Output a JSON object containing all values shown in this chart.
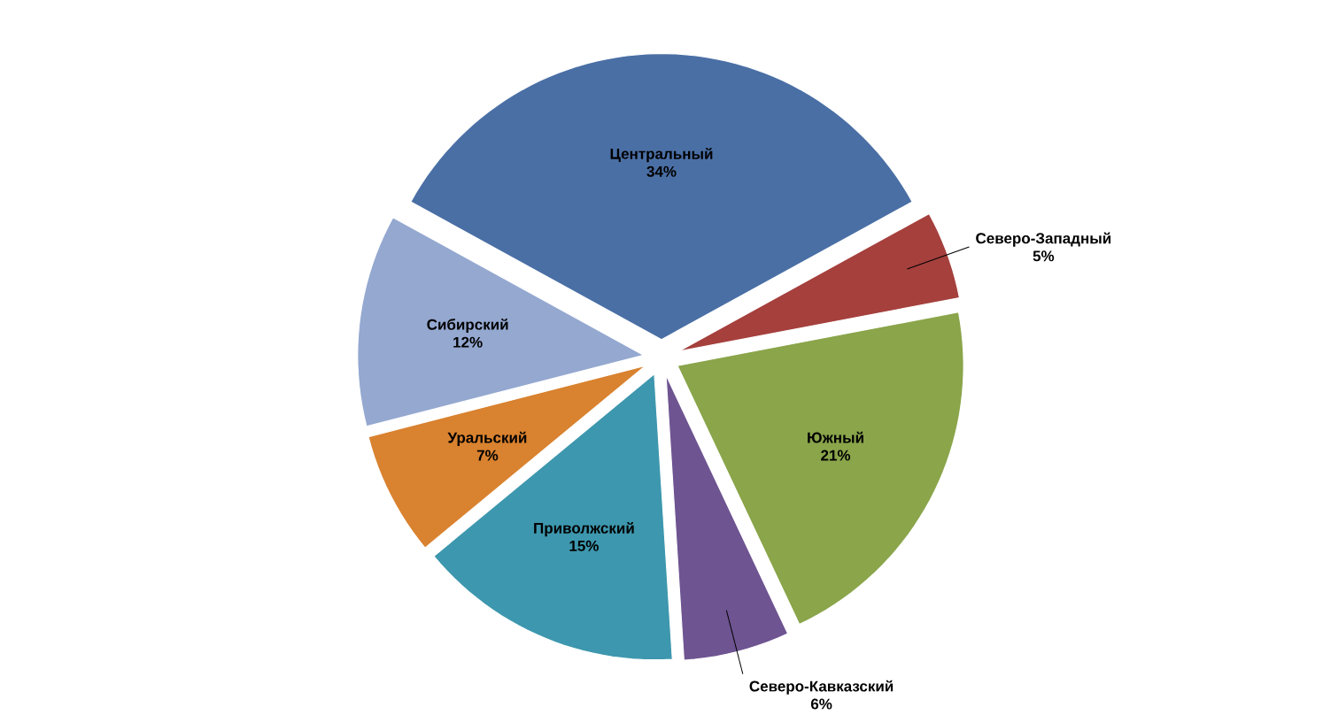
{
  "chart_data": {
    "type": "pie",
    "categories": [
      "Центральный",
      "Северо-Западный",
      "Южный",
      "Северо-Кавказский",
      "Приволжский",
      "Уральский",
      "Сибирский"
    ],
    "values": [
      34,
      5,
      21,
      6,
      15,
      7,
      12
    ],
    "value_labels": [
      "34%",
      "5%",
      "21%",
      "6%",
      "15%",
      "7%",
      "12%"
    ],
    "colors": [
      "#4a6fa5",
      "#a5403d",
      "#8aa54a",
      "#6e5491",
      "#3d97ae",
      "#d9822f",
      "#94a8d0"
    ]
  }
}
